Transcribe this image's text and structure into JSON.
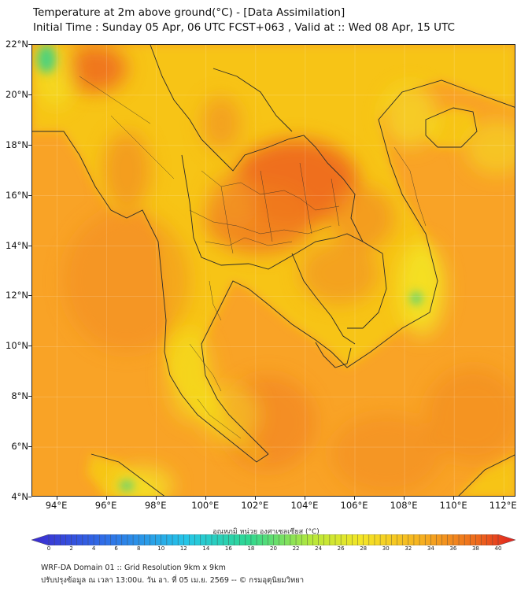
{
  "header": {
    "title": "Temperature at 2m above ground(°C) - [Data Assimilation]",
    "subtitle": "Initial Time : Sunday 05 Apr, 06 UTC FCST+063 , Valid at :: Wed 08 Apr, 15 UTC"
  },
  "map": {
    "lat_labels": [
      "22°N",
      "20°N",
      "18°N",
      "16°N",
      "14°N",
      "12°N",
      "10°N",
      "8°N",
      "6°N",
      "4°N"
    ],
    "lon_labels": [
      "94°E",
      "96°E",
      "98°E",
      "100°E",
      "102°E",
      "104°E",
      "106°E",
      "108°E",
      "110°E",
      "112°E"
    ],
    "colors": {
      "ocean": "#f9a326",
      "land_base": "#f7c418",
      "hot": "#ee6a1c",
      "warm": "#f29422",
      "cool": "#f4e626",
      "cold_spot": "#4fd27c",
      "borders": "#2a2a2a"
    }
  },
  "colorbar": {
    "title": "อุณหภูมิ หน่วย องศาเซลเซียส (°C)",
    "ticks": [
      "0",
      "2",
      "4",
      "6",
      "8",
      "10",
      "12",
      "14",
      "16",
      "18",
      "20",
      "22",
      "24",
      "26",
      "28",
      "30",
      "32",
      "34",
      "36",
      "38",
      "40"
    ]
  },
  "footer": {
    "line1": "WRF-DA Domain 01 :: Grid Resolution 9km x 9km",
    "line2": "ปรับปรุงข้อมูล ณ เวลา 13:00u. วัน อา. ที่ 05 เม.ย. 2569 -- © กรมอุตุนิยมวิทยา"
  }
}
